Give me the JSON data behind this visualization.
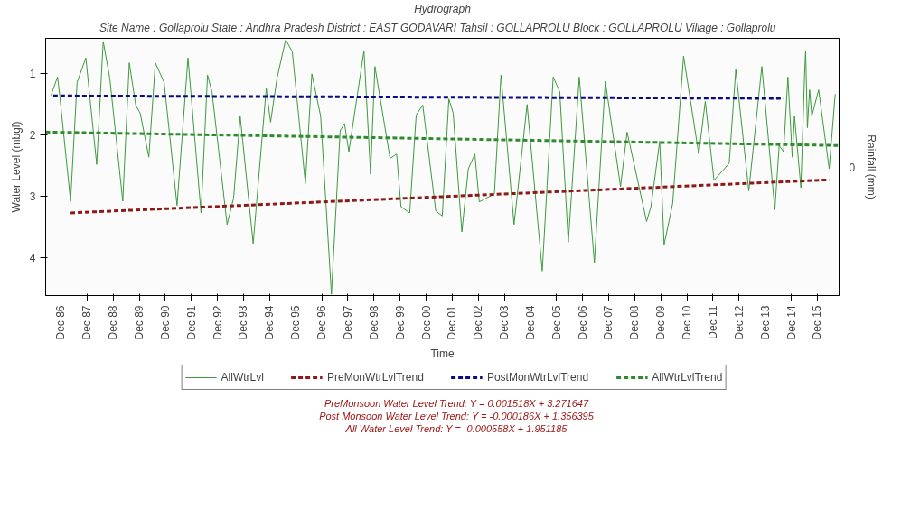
{
  "chart_data": {
    "type": "line",
    "title": "Hydrograph",
    "subtitle": "Site Name : Gollaprolu  State : Andhra Pradesh District : EAST GODAVARI  Tahsil : GOLLAPROLU  Block : GOLLAPROLU Village : Gollaprolu",
    "xlabel": "Time",
    "ylabel": "Water Level (mbgl)",
    "y2label": "Rainfall (mm)",
    "xlim": [
      "1986-05-01",
      "2016-10-01"
    ],
    "ylim": [
      4.62,
      0.42
    ],
    "yticks": [
      1,
      2,
      3,
      4
    ],
    "xticks": [
      {
        "value": "1986-12-01",
        "label": "Dec 86"
      },
      {
        "value": "1987-12-01",
        "label": "Dec 87"
      },
      {
        "value": "1988-12-01",
        "label": "Dec 88"
      },
      {
        "value": "1989-12-01",
        "label": "Dec 89"
      },
      {
        "value": "1990-12-01",
        "label": "Dec 90"
      },
      {
        "value": "1991-12-01",
        "label": "Dec 91"
      },
      {
        "value": "1992-12-01",
        "label": "Dec 92"
      },
      {
        "value": "1993-12-01",
        "label": "Dec 93"
      },
      {
        "value": "1994-12-01",
        "label": "Dec 94"
      },
      {
        "value": "1995-12-01",
        "label": "Dec 95"
      },
      {
        "value": "1996-12-01",
        "label": "Dec 96"
      },
      {
        "value": "1997-12-01",
        "label": "Dec 97"
      },
      {
        "value": "1998-12-01",
        "label": "Dec 98"
      },
      {
        "value": "1999-12-01",
        "label": "Dec 99"
      },
      {
        "value": "2000-12-01",
        "label": "Dec 00"
      },
      {
        "value": "2001-12-01",
        "label": "Dec 01"
      },
      {
        "value": "2002-12-01",
        "label": "Dec 02"
      },
      {
        "value": "2003-12-01",
        "label": "Dec 03"
      },
      {
        "value": "2004-12-01",
        "label": "Dec 04"
      },
      {
        "value": "2005-12-01",
        "label": "Dec 05"
      },
      {
        "value": "2006-12-01",
        "label": "Dec 06"
      },
      {
        "value": "2007-12-01",
        "label": "Dec 07"
      },
      {
        "value": "2008-12-01",
        "label": "Dec 08"
      },
      {
        "value": "2009-12-01",
        "label": "Dec 09"
      },
      {
        "value": "2010-12-01",
        "label": "Dec 10"
      },
      {
        "value": "2011-12-01",
        "label": "Dec 11"
      },
      {
        "value": "2012-12-01",
        "label": "Dec 12"
      },
      {
        "value": "2013-12-01",
        "label": "Dec 13"
      },
      {
        "value": "2014-12-01",
        "label": "Dec 14"
      },
      {
        "value": "2015-12-01",
        "label": "Dec 15"
      }
    ],
    "legend": "bottom",
    "series": [
      {
        "name": "AllWtrLvl",
        "color": "#3c9a3c",
        "line_style": "solid",
        "x": [
          "1986-07-15",
          "1986-10-15",
          "1986-11-15",
          "1987-04-15",
          "1987-07-15",
          "1987-11-15",
          "1988-04-15",
          "1988-07-15",
          "1988-10-15",
          "1989-04-15",
          "1989-07-15",
          "1989-10-15",
          "1989-12-15",
          "1990-04-15",
          "1990-07-15",
          "1990-11-15",
          "1991-05-15",
          "1991-10-15",
          "1992-04-15",
          "1992-07-15",
          "1992-09-15",
          "1993-04-15",
          "1993-07-15",
          "1993-10-15",
          "1994-04-15",
          "1994-10-15",
          "1994-12-15",
          "1995-03-15",
          "1995-07-15",
          "1995-10-15",
          "1996-04-15",
          "1996-07-15",
          "1996-11-15",
          "1997-04-15",
          "1997-08-15",
          "1997-10-15",
          "1997-12-15",
          "1998-07-15",
          "1998-10-15",
          "1998-12-15",
          "1999-07-15",
          "1999-10-15",
          "1999-12-15",
          "2000-04-15",
          "2000-07-15",
          "2000-10-15",
          "2001-04-15",
          "2001-07-15",
          "2001-10-15",
          "2001-12-15",
          "2002-04-15",
          "2002-07-15",
          "2002-10-15",
          "2002-12-15",
          "2003-07-15",
          "2003-10-15",
          "2004-04-15",
          "2004-10-15",
          "2005-05-15",
          "2005-10-15",
          "2006-01-15",
          "2006-05-15",
          "2006-10-15",
          "2007-05-15",
          "2007-10-15",
          "2008-05-15",
          "2008-08-15",
          "2009-05-15",
          "2009-07-15",
          "2009-11-15",
          "2010-01-15",
          "2010-05-15",
          "2010-10-15",
          "2011-05-15",
          "2011-08-15",
          "2011-12-15",
          "2012-07-15",
          "2012-10-15",
          "2013-04-15",
          "2013-10-15",
          "2014-04-15",
          "2014-06-15",
          "2014-08-15",
          "2014-10-15",
          "2014-12-15",
          "2015-01-15",
          "2015-04-15",
          "2015-06-05",
          "2015-06-20",
          "2015-07-15",
          "2015-08-15",
          "2015-09-15",
          "2015-12-20",
          "2016-05-15",
          "2016-08-08"
        ],
        "values": [
          1.35,
          1.05,
          1.36,
          3.08,
          1.14,
          0.74,
          2.48,
          0.47,
          1.07,
          3.08,
          0.82,
          1.52,
          1.64,
          2.36,
          0.82,
          1.14,
          3.15,
          0.74,
          3.27,
          1.02,
          1.29,
          3.46,
          3.03,
          1.69,
          3.77,
          1.24,
          1.79,
          1.07,
          0.44,
          0.64,
          2.79,
          1.0,
          1.69,
          4.6,
          1.93,
          1.81,
          2.27,
          0.62,
          2.64,
          0.88,
          2.38,
          2.31,
          3.17,
          3.27,
          1.67,
          1.51,
          3.24,
          3.32,
          1.41,
          1.64,
          3.58,
          2.55,
          2.31,
          3.09,
          2.96,
          1.02,
          3.46,
          1.5,
          4.22,
          1.05,
          1.29,
          3.75,
          1.05,
          4.08,
          1.12,
          2.84,
          1.95,
          3.41,
          3.17,
          2.1,
          3.79,
          3.12,
          0.71,
          2.31,
          1.45,
          2.74,
          2.46,
          0.93,
          2.91,
          0.88,
          3.22,
          2.17,
          2.27,
          1.05,
          2.36,
          1.69,
          2.86,
          1.02,
          0.62,
          1.88,
          1.26,
          1.69,
          1.26,
          2.55,
          1.33
        ]
      },
      {
        "name": "PreMonWtrLvlTrend",
        "color": "#8b1a1a",
        "line_style": "dashed",
        "x": [
          "1987-04-15",
          "2016-05-15"
        ],
        "values": [
          3.27,
          2.73
        ]
      },
      {
        "name": "PostMonWtrLvlTrend",
        "color": "#0a0a80",
        "line_style": "dashed",
        "x": [
          "1986-08-15",
          "2014-08-15"
        ],
        "values": [
          1.36,
          1.4
        ]
      },
      {
        "name": "AllWtrLvlTrend",
        "color": "#2e8b2e",
        "line_style": "dashed",
        "x": [
          "1986-05-01",
          "2016-09-15"
        ],
        "values": [
          1.95,
          2.17
        ]
      }
    ],
    "annotations": [
      "0",
      "PreMonsoon Water Level Trend: Y = 0.001518X + 3.271647",
      "Post Monsoon Water Level Trend: Y = -0.000186X + 1.356395",
      "All Water Level Trend: Y = -0.000558X + 1.951185"
    ]
  }
}
